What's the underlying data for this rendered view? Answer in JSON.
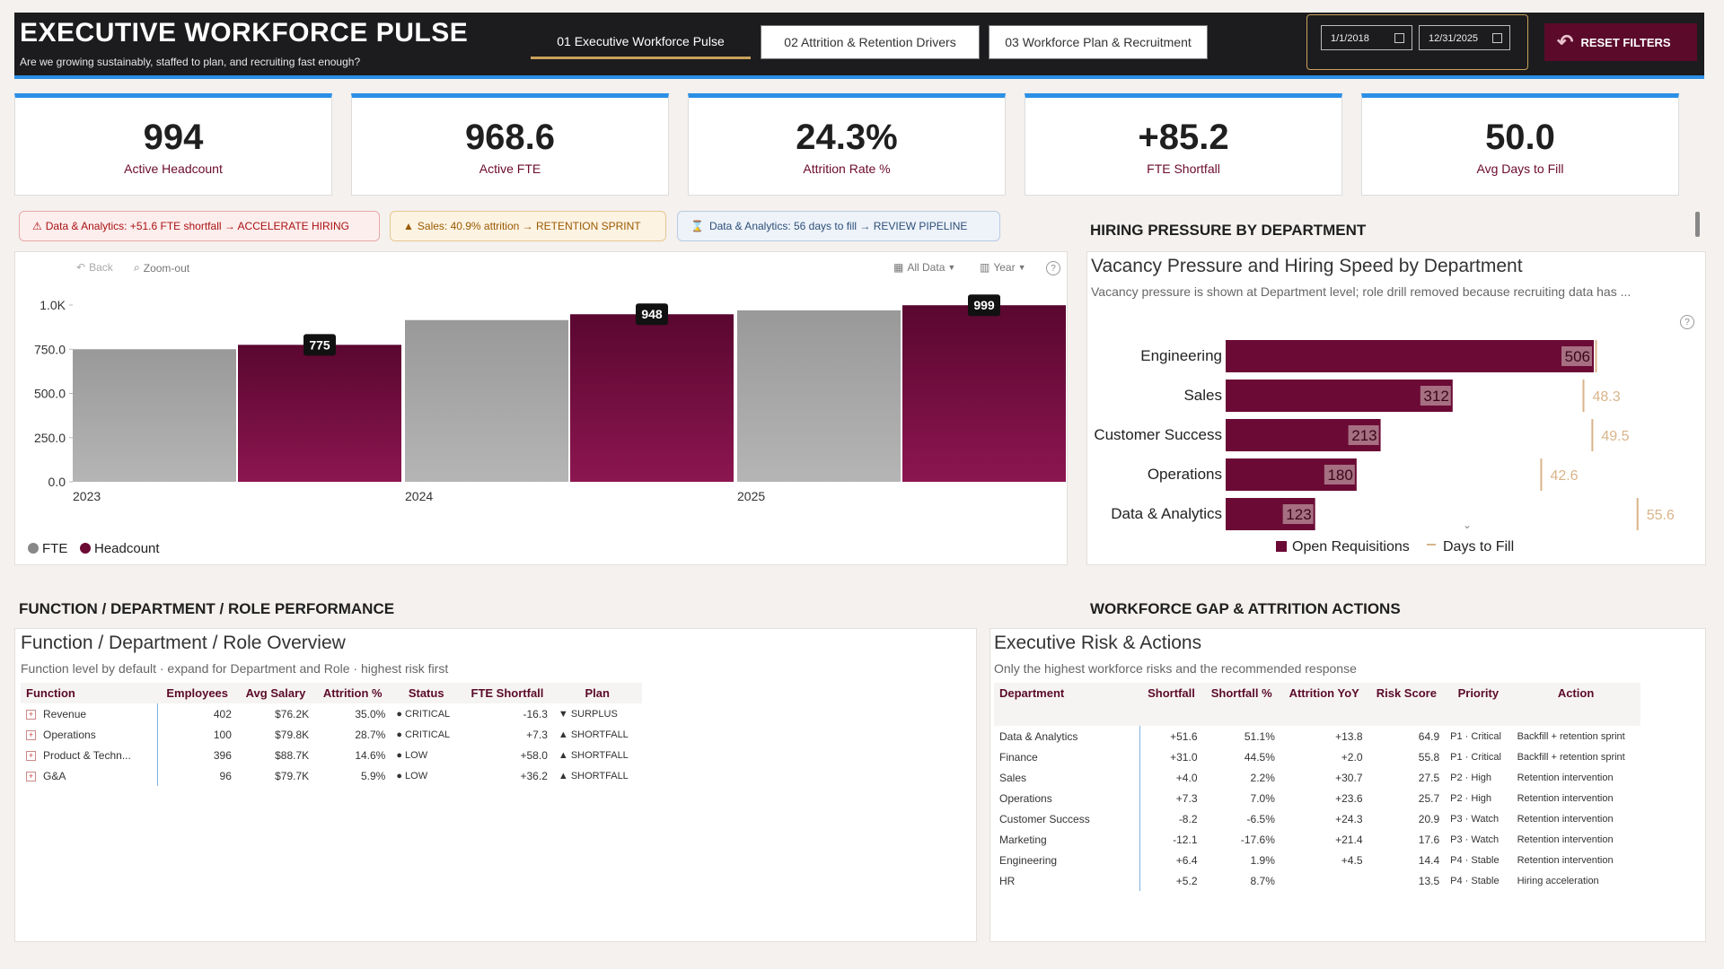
{
  "header": {
    "title": "EXECUTIVE WORKFORCE PULSE",
    "subtitle": "Are we growing sustainably, staffed to plan, and recruiting fast enough?",
    "tabs": [
      {
        "label": "01 Executive Workforce Pulse",
        "active": true
      },
      {
        "label": "02 Attrition & Retention Drivers",
        "active": false
      },
      {
        "label": "03 Workforce Plan & Recruitment",
        "active": false
      }
    ],
    "date_start": "1/1/2018",
    "date_end": "12/31/2025",
    "reset_label": "RESET FILTERS"
  },
  "kpis": [
    {
      "value": "994",
      "label": "Active Headcount"
    },
    {
      "value": "968.6",
      "label": "Active FTE"
    },
    {
      "value": "24.3%",
      "label": "Attrition Rate %"
    },
    {
      "value": "+85.2",
      "label": "FTE Shortfall"
    },
    {
      "value": "50.0",
      "label": "Avg Days to Fill"
    }
  ],
  "alerts": [
    {
      "icon": "⚠",
      "text": "Data & Analytics: +51.6 FTE shortfall → ACCELERATE HIRING"
    },
    {
      "icon": "▲",
      "text": "Sales: 40.9% attrition → RETENTION SPRINT"
    },
    {
      "icon": "⌛",
      "text": "Data & Analytics: 56 days to fill → REVIEW PIPELINE"
    }
  ],
  "colors": {
    "headcount": "#6b0a35",
    "fte": "#a3a3a3",
    "accent": "#2b8fe6",
    "days_to_fill": "#d9b48a"
  },
  "headcount_chart": {
    "toolbar": {
      "back": "Back",
      "zoom_out": "Zoom-out",
      "all_data": "All Data",
      "year": "Year"
    },
    "legend": [
      "FTE",
      "Headcount"
    ],
    "help": "?"
  },
  "hiring_section": {
    "section_title": "HIRING PRESSURE BY DEPARTMENT",
    "title": "Vacancy Pressure and Hiring Speed by Department",
    "subtitle": "Vacancy pressure is shown at Department level; role drill removed because recruiting data has ...",
    "legend": [
      "Open Requisitions",
      "Days to Fill"
    ]
  },
  "chart_data": [
    {
      "type": "bar",
      "categories": [
        "2023",
        "2024",
        "2025"
      ],
      "series": [
        {
          "name": "FTE",
          "values": [
            750,
            915,
            970
          ]
        },
        {
          "name": "Headcount",
          "values": [
            775,
            948,
            999
          ]
        }
      ],
      "data_labels": [
        "775",
        "948",
        "999"
      ],
      "y_ticks": [
        "0.0",
        "250.0",
        "500.0",
        "750.0",
        "1.0K"
      ],
      "ylim": [
        0,
        1000
      ],
      "legend_position": "bottom-left"
    },
    {
      "type": "bar",
      "orientation": "horizontal",
      "categories": [
        "Engineering",
        "Sales",
        "Customer Success",
        "Operations",
        "Data & Analytics"
      ],
      "series": [
        {
          "name": "Open Requisitions",
          "values": [
            506,
            312,
            213,
            180,
            123
          ]
        },
        {
          "name": "Days to Fill",
          "values": [
            50.0,
            48.3,
            49.5,
            42.6,
            55.6
          ]
        }
      ],
      "req_labels": [
        "506",
        "312",
        "213",
        "180",
        "123"
      ],
      "days_labels": [
        "",
        "48.3",
        "49.5",
        "42.6",
        "55.6"
      ],
      "xlim_req": [
        0,
        506
      ],
      "xlim_days": [
        0,
        60
      ],
      "legend_position": "bottom"
    }
  ],
  "function_section": {
    "section_title": "FUNCTION / DEPARTMENT / ROLE PERFORMANCE",
    "title": "Function / Department / Role Overview",
    "subtitle": "Function level by default · expand for Department and Role · highest risk first",
    "columns": [
      "Function",
      "Employees",
      "Avg Salary",
      "Attrition %",
      "Status",
      "FTE Shortfall",
      "Plan"
    ],
    "rows": [
      {
        "function": "Revenue",
        "employees": "402",
        "salary": "$76.2K",
        "attrition": "35.0%",
        "status": "● CRITICAL",
        "shortfall": "-16.3",
        "plan": "▼ SURPLUS"
      },
      {
        "function": "Operations",
        "employees": "100",
        "salary": "$79.8K",
        "attrition": "28.7%",
        "status": "● CRITICAL",
        "shortfall": "+7.3",
        "plan": "▲ SHORTFALL"
      },
      {
        "function": "Product & Techn...",
        "employees": "396",
        "salary": "$88.7K",
        "attrition": "14.6%",
        "status": "● LOW",
        "shortfall": "+58.0",
        "plan": "▲ SHORTFALL"
      },
      {
        "function": "G&A",
        "employees": "96",
        "salary": "$79.7K",
        "attrition": "5.9%",
        "status": "● LOW",
        "shortfall": "+36.2",
        "plan": "▲ SHORTFALL"
      }
    ]
  },
  "risk_section": {
    "section_title": "WORKFORCE GAP & ATTRITION ACTIONS",
    "title": "Executive Risk & Actions",
    "subtitle": "Only the highest workforce risks and the recommended response",
    "columns": [
      "Department",
      "Shortfall",
      "Shortfall %",
      "Attrition YoY",
      "Risk Score",
      "Priority",
      "Action"
    ],
    "rows": [
      {
        "dept": "Data & Analytics",
        "shortfall": "+51.6",
        "pct": "51.1%",
        "yoy": "+13.8",
        "score": "64.9",
        "priority": "P1 · Critical",
        "action": "Backfill + retention sprint"
      },
      {
        "dept": "Finance",
        "shortfall": "+31.0",
        "pct": "44.5%",
        "yoy": "+2.0",
        "score": "55.8",
        "priority": "P1 · Critical",
        "action": "Backfill + retention sprint"
      },
      {
        "dept": "Sales",
        "shortfall": "+4.0",
        "pct": "2.2%",
        "yoy": "+30.7",
        "score": "27.5",
        "priority": "P2 · High",
        "action": "Retention intervention"
      },
      {
        "dept": "Operations",
        "shortfall": "+7.3",
        "pct": "7.0%",
        "yoy": "+23.6",
        "score": "25.7",
        "priority": "P2 · High",
        "action": "Retention intervention"
      },
      {
        "dept": "Customer Success",
        "shortfall": "-8.2",
        "pct": "-6.5%",
        "yoy": "+24.3",
        "score": "20.9",
        "priority": "P3 · Watch",
        "action": "Retention intervention"
      },
      {
        "dept": "Marketing",
        "shortfall": "-12.1",
        "pct": "-17.6%",
        "yoy": "+21.4",
        "score": "17.6",
        "priority": "P3 · Watch",
        "action": "Retention intervention"
      },
      {
        "dept": "Engineering",
        "shortfall": "+6.4",
        "pct": "1.9%",
        "yoy": "+4.5",
        "score": "14.4",
        "priority": "P4 · Stable",
        "action": "Retention intervention"
      },
      {
        "dept": "HR",
        "shortfall": "+5.2",
        "pct": "8.7%",
        "yoy": "",
        "score": "13.5",
        "priority": "P4 · Stable",
        "action": "Hiring acceleration"
      }
    ]
  }
}
